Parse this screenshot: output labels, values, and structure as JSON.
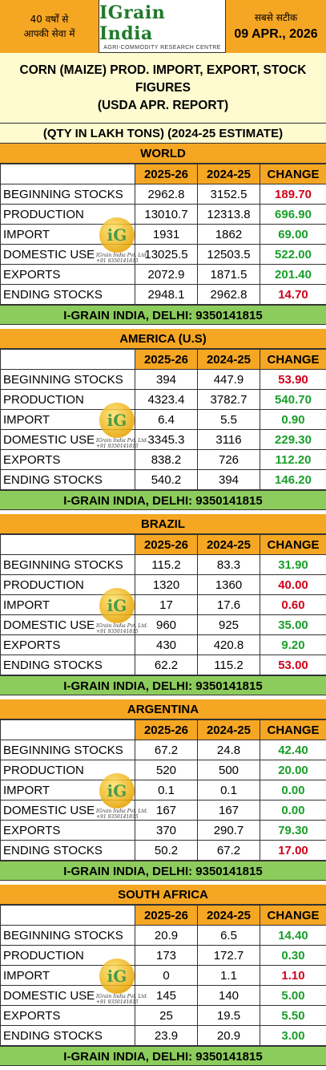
{
  "header": {
    "left_line1": "40 वर्षों से",
    "left_line2": "आपकी सेवा में",
    "brand": "IGrain India",
    "brand_sub": "AGRI-COMMODITY RESEARCH CENTRE",
    "right_slogan": "सबसे सटीक",
    "date": "09 APR., 2026"
  },
  "title": {
    "line1": "CORN (MAIZE) PROD. IMPORT, EXPORT, STOCK",
    "line2": "FIGURES",
    "line3": "(USDA APR. REPORT)",
    "qty": "(QTY IN LAKH TONS) (2024-25 ESTIMATE)"
  },
  "columns": [
    "2025-26",
    "2024-25",
    "CHANGE"
  ],
  "colors": {
    "orange": "#f5a623",
    "green_footer": "#8ccc5c",
    "pale_yellow": "#fffbd0",
    "red": "#d0021b",
    "green": "#1a9e2a"
  },
  "watermark": {
    "mark": "iG",
    "line1": "IGrain India Pvt. Ltd.",
    "line2": "+91 9350141815"
  },
  "sections": [
    {
      "name": "WORLD",
      "footer": "I-GRAIN INDIA, DELHI: 9350141815",
      "rows": [
        {
          "label": "BEGINNING STOCKS",
          "v1": "2962.8",
          "v2": "3152.5",
          "change": "189.70",
          "dir": "down"
        },
        {
          "label": "PRODUCTION",
          "v1": "13010.7",
          "v2": "12313.8",
          "change": "696.90",
          "dir": "up"
        },
        {
          "label": "IMPORT",
          "v1": "1931",
          "v2": "1862",
          "change": "69.00",
          "dir": "up"
        },
        {
          "label": "DOMESTIC USE",
          "v1": "13025.5",
          "v2": "12503.5",
          "change": "522.00",
          "dir": "up"
        },
        {
          "label": "EXPORTS",
          "v1": "2072.9",
          "v2": "1871.5",
          "change": "201.40",
          "dir": "up"
        },
        {
          "label": "ENDING STOCKS",
          "v1": "2948.1",
          "v2": "2962.8",
          "change": "14.70",
          "dir": "down"
        }
      ]
    },
    {
      "name": "AMERICA (U.S)",
      "footer": "I-GRAIN INDIA, DELHI: 9350141815",
      "rows": [
        {
          "label": "BEGINNING STOCKS",
          "v1": "394",
          "v2": "447.9",
          "change": "53.90",
          "dir": "down"
        },
        {
          "label": "PRODUCTION",
          "v1": "4323.4",
          "v2": "3782.7",
          "change": "540.70",
          "dir": "up"
        },
        {
          "label": "IMPORT",
          "v1": "6.4",
          "v2": "5.5",
          "change": "0.90",
          "dir": "up"
        },
        {
          "label": "DOMESTIC USE",
          "v1": "3345.3",
          "v2": "3116",
          "change": "229.30",
          "dir": "up"
        },
        {
          "label": "EXPORTS",
          "v1": "838.2",
          "v2": "726",
          "change": "112.20",
          "dir": "up"
        },
        {
          "label": "ENDING STOCKS",
          "v1": "540.2",
          "v2": "394",
          "change": "146.20",
          "dir": "up"
        }
      ]
    },
    {
      "name": "BRAZIL",
      "footer": "I-GRAIN INDIA, DELHI: 9350141815",
      "rows": [
        {
          "label": "BEGINNING STOCKS",
          "v1": "115.2",
          "v2": "83.3",
          "change": "31.90",
          "dir": "up"
        },
        {
          "label": "PRODUCTION",
          "v1": "1320",
          "v2": "1360",
          "change": "40.00",
          "dir": "down"
        },
        {
          "label": "IMPORT",
          "v1": "17",
          "v2": "17.6",
          "change": "0.60",
          "dir": "down"
        },
        {
          "label": "DOMESTIC USE",
          "v1": "960",
          "v2": "925",
          "change": "35.00",
          "dir": "up"
        },
        {
          "label": "EXPORTS",
          "v1": "430",
          "v2": "420.8",
          "change": "9.20",
          "dir": "up"
        },
        {
          "label": "ENDING STOCKS",
          "v1": "62.2",
          "v2": "115.2",
          "change": "53.00",
          "dir": "down"
        }
      ]
    },
    {
      "name": "ARGENTINA",
      "footer": "I-GRAIN INDIA, DELHI: 9350141815",
      "rows": [
        {
          "label": "BEGINNING STOCKS",
          "v1": "67.2",
          "v2": "24.8",
          "change": "42.40",
          "dir": "up"
        },
        {
          "label": "PRODUCTION",
          "v1": "520",
          "v2": "500",
          "change": "20.00",
          "dir": "up"
        },
        {
          "label": "IMPORT",
          "v1": "0.1",
          "v2": "0.1",
          "change": "0.00",
          "dir": "up"
        },
        {
          "label": "DOMESTIC USE",
          "v1": "167",
          "v2": "167",
          "change": "0.00",
          "dir": "up"
        },
        {
          "label": "EXPORTS",
          "v1": "370",
          "v2": "290.7",
          "change": "79.30",
          "dir": "up"
        },
        {
          "label": "ENDING STOCKS",
          "v1": "50.2",
          "v2": "67.2",
          "change": "17.00",
          "dir": "down"
        }
      ]
    },
    {
      "name": "SOUTH AFRICA",
      "footer": "I-GRAIN INDIA, DELHI: 9350141815",
      "rows": [
        {
          "label": "BEGINNING STOCKS",
          "v1": "20.9",
          "v2": "6.5",
          "change": "14.40",
          "dir": "up"
        },
        {
          "label": "PRODUCTION",
          "v1": "173",
          "v2": "172.7",
          "change": "0.30",
          "dir": "up"
        },
        {
          "label": "IMPORT",
          "v1": "0",
          "v2": "1.1",
          "change": "1.10",
          "dir": "down"
        },
        {
          "label": "DOMESTIC USE",
          "v1": "145",
          "v2": "140",
          "change": "5.00",
          "dir": "up"
        },
        {
          "label": "EXPORTS",
          "v1": "25",
          "v2": "19.5",
          "change": "5.50",
          "dir": "up"
        },
        {
          "label": "ENDING STOCKS",
          "v1": "23.9",
          "v2": "20.9",
          "change": "3.00",
          "dir": "up"
        }
      ]
    }
  ]
}
